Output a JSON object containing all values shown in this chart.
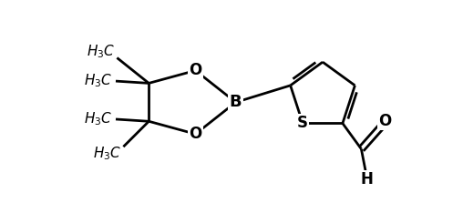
{
  "background_color": "#ffffff",
  "line_color": "#000000",
  "line_width": 2.0,
  "font_size": 12,
  "figsize": [
    5.08,
    2.34
  ],
  "dpi": 100,
  "xlim": [
    0,
    10
  ],
  "ylim": [
    0,
    5
  ]
}
